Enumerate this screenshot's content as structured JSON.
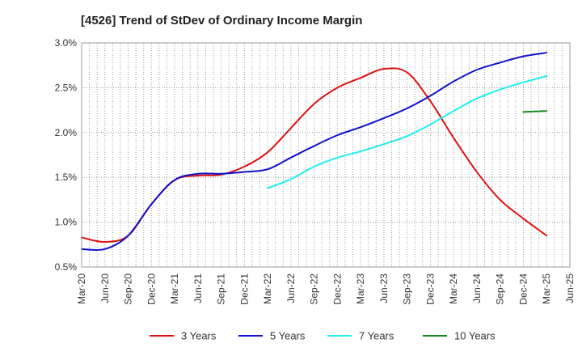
{
  "chart_data": {
    "type": "line",
    "title": "[4526]  Trend of StDev of Ordinary Income Margin",
    "xlabel": "",
    "ylabel": "",
    "x_ticks": [
      "Mar-20",
      "Jun-20",
      "Sep-20",
      "Dec-20",
      "Mar-21",
      "Jun-21",
      "Sep-21",
      "Dec-21",
      "Mar-22",
      "Jun-22",
      "Sep-22",
      "Dec-22",
      "Mar-23",
      "Jun-23",
      "Sep-23",
      "Dec-23",
      "Mar-24",
      "Jun-24",
      "Sep-24",
      "Dec-24",
      "Mar-25",
      "Jun-25"
    ],
    "y_ticks": [
      "0.5%",
      "1.0%",
      "1.5%",
      "2.0%",
      "2.5%",
      "3.0%"
    ],
    "ylim": [
      0.5,
      3.0
    ],
    "y_unit": "%",
    "grid": true,
    "legend_position": "bottom",
    "series": [
      {
        "name": "3 Years",
        "color": "#dd1111",
        "x": [
          "Mar-20",
          "Jun-20",
          "Sep-20",
          "Dec-20",
          "Mar-21",
          "Jun-21",
          "Sep-21",
          "Dec-21",
          "Mar-22",
          "Jun-22",
          "Sep-22",
          "Dec-22",
          "Mar-23",
          "Jun-23",
          "Sep-23",
          "Dec-23",
          "Mar-24",
          "Jun-24",
          "Sep-24",
          "Dec-24",
          "Mar-25"
        ],
        "values": [
          0.83,
          0.78,
          0.85,
          1.2,
          1.47,
          1.52,
          1.53,
          1.62,
          1.78,
          2.05,
          2.32,
          2.5,
          2.61,
          2.71,
          2.67,
          2.35,
          1.94,
          1.56,
          1.25,
          1.04,
          0.85
        ]
      },
      {
        "name": "5 Years",
        "color": "#1111cc",
        "x": [
          "Mar-20",
          "Jun-20",
          "Sep-20",
          "Dec-20",
          "Mar-21",
          "Jun-21",
          "Sep-21",
          "Dec-21",
          "Mar-22",
          "Jun-22",
          "Sep-22",
          "Dec-22",
          "Mar-23",
          "Jun-23",
          "Sep-23",
          "Dec-23",
          "Mar-24",
          "Jun-24",
          "Sep-24",
          "Dec-24",
          "Mar-25"
        ],
        "values": [
          0.7,
          0.7,
          0.85,
          1.2,
          1.47,
          1.54,
          1.54,
          1.56,
          1.59,
          1.72,
          1.85,
          1.97,
          2.06,
          2.16,
          2.27,
          2.41,
          2.57,
          2.7,
          2.78,
          2.85,
          2.89
        ]
      },
      {
        "name": "7 Years",
        "color": "#22eeee",
        "x": [
          "Mar-22",
          "Jun-22",
          "Sep-22",
          "Dec-22",
          "Mar-23",
          "Jun-23",
          "Sep-23",
          "Dec-23",
          "Mar-24",
          "Jun-24",
          "Sep-24",
          "Dec-24",
          "Mar-25"
        ],
        "values": [
          1.38,
          1.48,
          1.62,
          1.72,
          1.79,
          1.87,
          1.96,
          2.09,
          2.24,
          2.38,
          2.48,
          2.56,
          2.63
        ]
      },
      {
        "name": "10 Years",
        "color": "#118822",
        "x": [
          "Dec-24",
          "Mar-25"
        ],
        "values": [
          2.23,
          2.24
        ]
      }
    ]
  }
}
